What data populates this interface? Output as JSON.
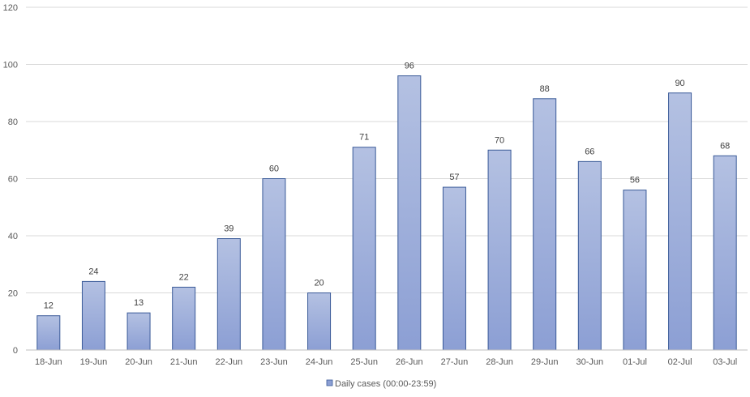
{
  "chart_data": {
    "type": "bar",
    "categories": [
      "18-Jun",
      "19-Jun",
      "20-Jun",
      "21-Jun",
      "22-Jun",
      "23-Jun",
      "24-Jun",
      "25-Jun",
      "26-Jun",
      "27-Jun",
      "28-Jun",
      "29-Jun",
      "30-Jun",
      "01-Jul",
      "02-Jul",
      "03-Jul"
    ],
    "series": [
      {
        "name": "Daily cases (00:00-23:59)",
        "values": [
          12,
          24,
          13,
          22,
          39,
          60,
          20,
          71,
          96,
          57,
          70,
          88,
          66,
          56,
          90,
          68
        ]
      }
    ],
    "ylim": [
      0,
      120
    ],
    "yticks": [
      0,
      20,
      40,
      60,
      80,
      100,
      120
    ],
    "grid": true,
    "legend_position": "bottom",
    "data_labels": true,
    "colors": {
      "bar_top": "#b4c1e2",
      "bar_bottom": "#8c9fd4",
      "bar_border": "#3a5a98"
    }
  }
}
